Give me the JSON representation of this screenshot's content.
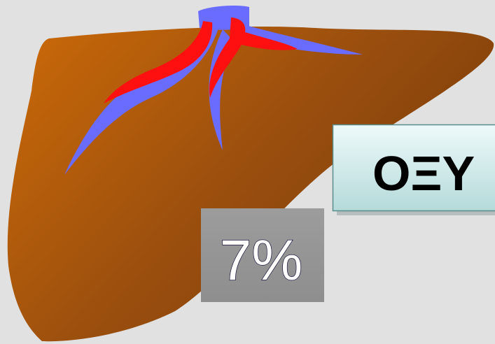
{
  "label": "ΟΞΥ",
  "percent": "7%"
}
